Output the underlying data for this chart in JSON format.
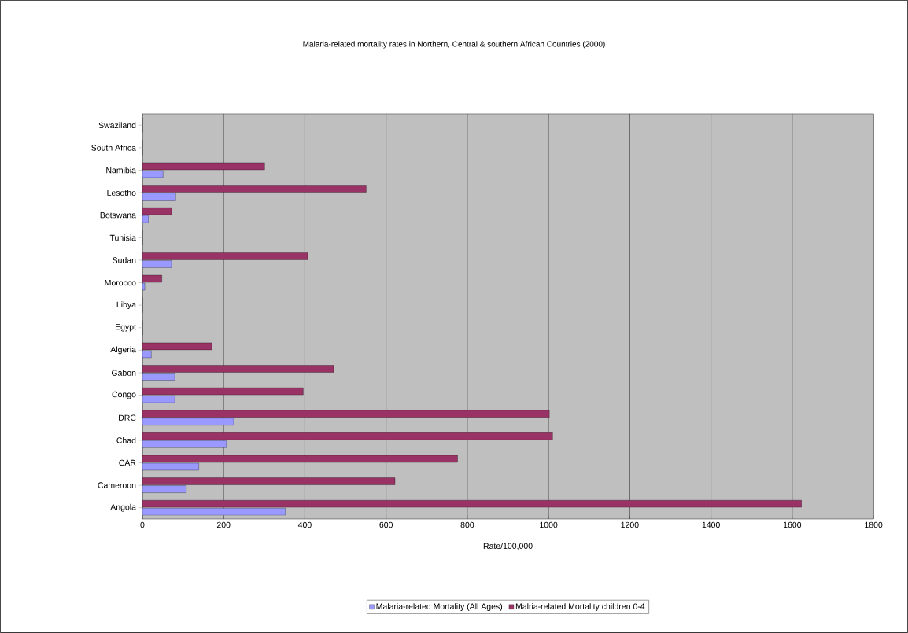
{
  "chart_data": {
    "type": "bar",
    "orientation": "horizontal",
    "title": "Malaria-related mortality rates in Northern, Central & southern African Countries (2000)",
    "xlabel": "Rate/100,000",
    "categories": [
      "Swaziland",
      "South Africa",
      "Namibia",
      "Lesotho",
      "Botswana",
      "Tunisia",
      "Sudan",
      "Morocco",
      "Libya",
      "Egypt",
      "Algeria",
      "Gabon",
      "Congo",
      "DRC",
      "Chad",
      "CAR",
      "Cameroon",
      "Angola"
    ],
    "series": [
      {
        "name": "Malaria-related  Mortality (All Ages)",
        "color": "#9999ff",
        "values": [
          0,
          0,
          51,
          82,
          15,
          0,
          72,
          6,
          0,
          0,
          22,
          80,
          80,
          225,
          207,
          139,
          108,
          352
        ]
      },
      {
        "name": "Malria-related Mortality children 0-4",
        "color": "#993366",
        "values": [
          0,
          0,
          301,
          551,
          72,
          0,
          407,
          48,
          0,
          0,
          171,
          471,
          396,
          1002,
          1010,
          776,
          622,
          1623
        ]
      }
    ],
    "xlim": [
      0,
      1800
    ],
    "xticks": [
      0,
      200,
      400,
      600,
      800,
      1000,
      1200,
      1400,
      1600,
      1800
    ],
    "grid": "x",
    "legend": "bottom"
  }
}
